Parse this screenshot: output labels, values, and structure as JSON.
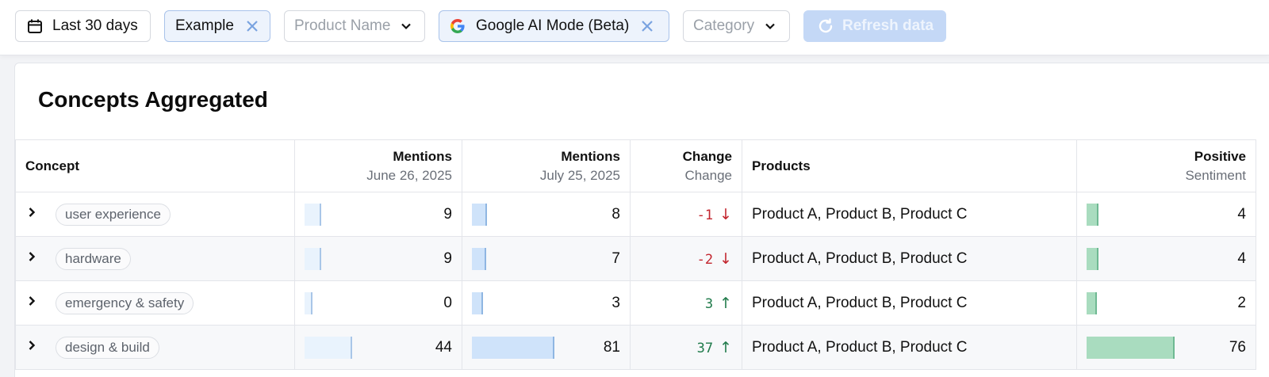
{
  "filters": {
    "date_range": "Last 30 days",
    "tag": "Example",
    "product_placeholder": "Product Name",
    "model": "Google AI Mode (Beta)",
    "category_placeholder": "Category",
    "refresh_label": "Refresh data"
  },
  "colors": {
    "accent": "#4a86d9",
    "positive": "#1f7a4a",
    "negative": "#c3262f",
    "bar_prev": "#e9f3fd",
    "bar_curr": "#cfe3fa",
    "bar_sentiment": "#a9dcbf"
  },
  "card": {
    "title": "Concepts Aggregated"
  },
  "table": {
    "headers": {
      "concept": "Concept",
      "mentions_prev": "Mentions",
      "mentions_prev_sub": "June 26, 2025",
      "mentions_curr": "Mentions",
      "mentions_curr_sub": "July 25, 2025",
      "change": "Change",
      "change_sub": "Change",
      "products": "Products",
      "positive": "Positive",
      "positive_sub": "Sentiment"
    },
    "rows": [
      {
        "concept": "user experience",
        "mentions_prev": "9",
        "mentions_curr": "8",
        "change": "-1",
        "change_dir": "down",
        "products": "Product A, Product B, Product C",
        "positive": "4",
        "prev_frac": 0.12,
        "curr_frac": 0.1,
        "pos_frac": 0.05
      },
      {
        "concept": "hardware",
        "mentions_prev": "9",
        "mentions_curr": "7",
        "change": "-2",
        "change_dir": "down",
        "products": "Product A, Product B, Product C",
        "positive": "4",
        "prev_frac": 0.12,
        "curr_frac": 0.09,
        "pos_frac": 0.05
      },
      {
        "concept": "emergency & safety",
        "mentions_prev": "0",
        "mentions_curr": "3",
        "change": "3",
        "change_dir": "up",
        "products": "Product A, Product B, Product C",
        "positive": "2",
        "prev_frac": 0.0,
        "curr_frac": 0.04,
        "pos_frac": 0.03
      },
      {
        "concept": "design & build",
        "mentions_prev": "44",
        "mentions_curr": "81",
        "change": "37",
        "change_dir": "up",
        "products": "Product A, Product B, Product C",
        "positive": "76",
        "prev_frac": 0.54,
        "curr_frac": 1.0,
        "pos_frac": 1.0
      }
    ]
  }
}
